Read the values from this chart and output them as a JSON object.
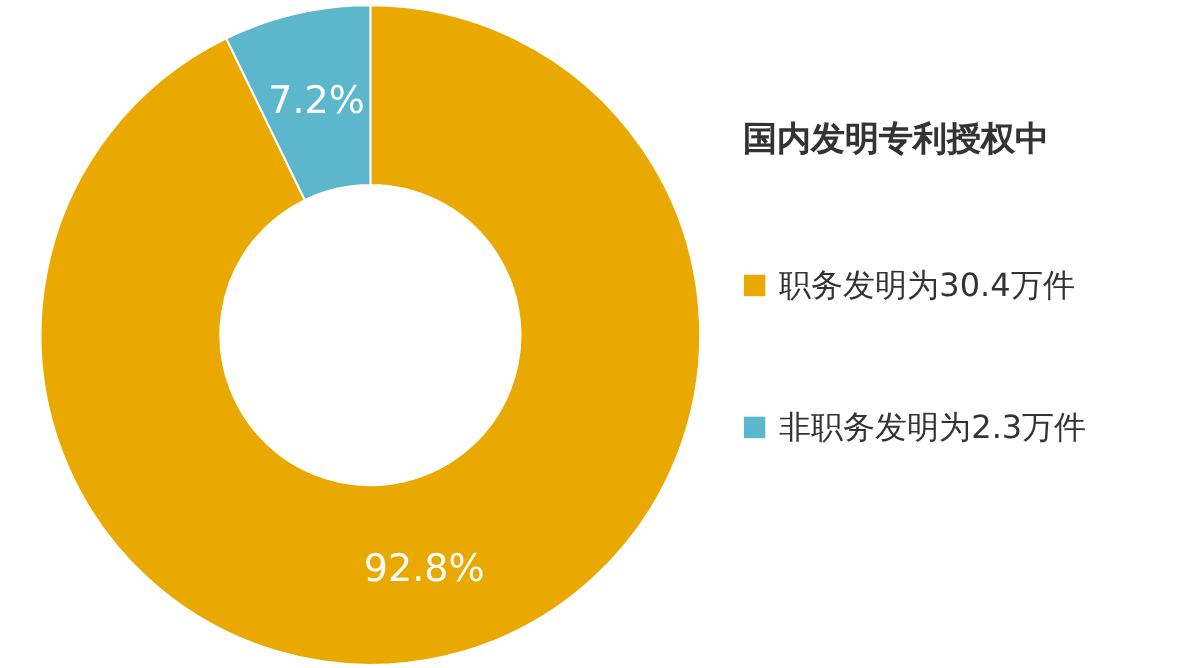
{
  "chart_data": {
    "type": "donut",
    "title": "国内发明专利授权中",
    "categories": [
      "职务发明为30.4万件",
      "非职务发明为2.3万件"
    ],
    "values": [
      92.8,
      7.2
    ],
    "colors": [
      "#e9a900",
      "#5db7cc"
    ],
    "value_labels": [
      "92.8%",
      "7.2%"
    ],
    "legend": "right"
  }
}
